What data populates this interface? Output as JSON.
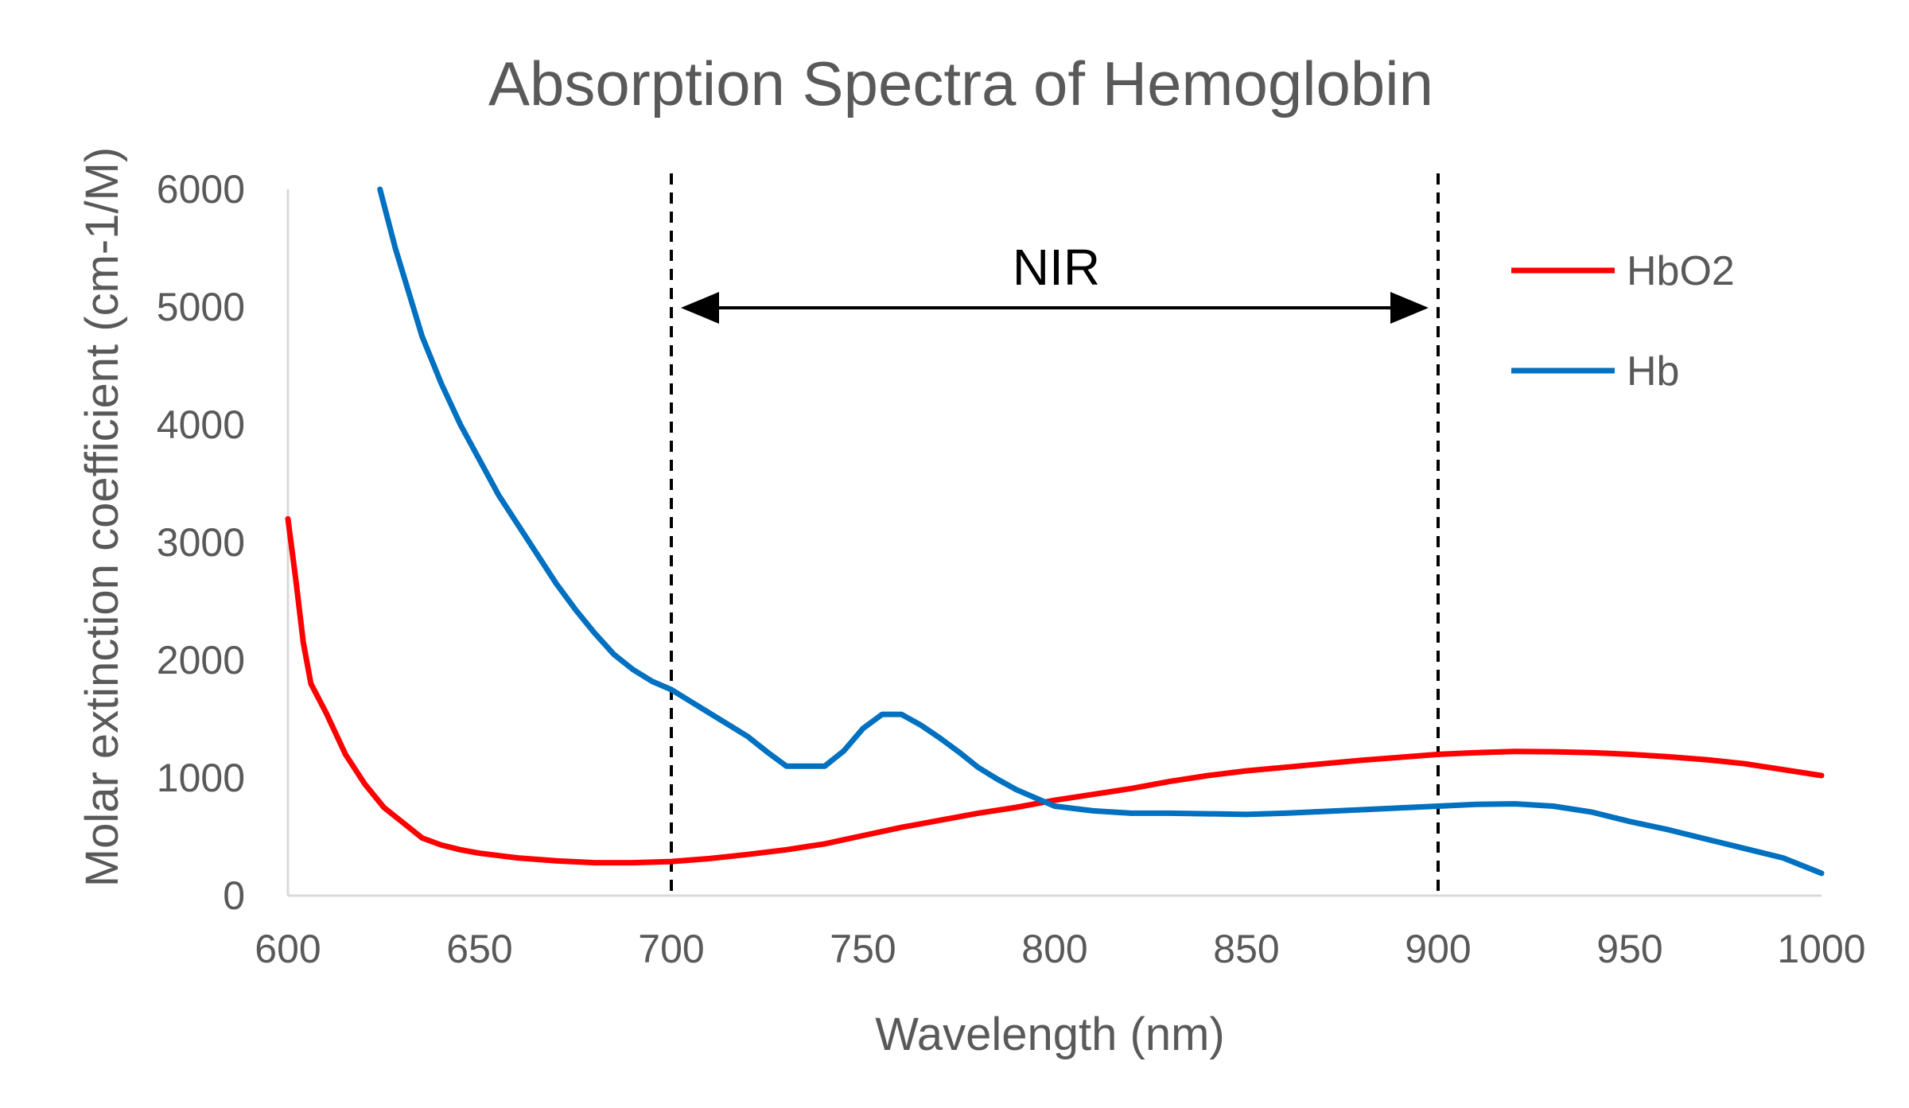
{
  "chart_data": {
    "type": "line",
    "title": "Absorption Spectra of Hemoglobin",
    "xlabel": "Wavelength (nm)",
    "ylabel": "Molar extinction coefficient (cm-1/M)",
    "xlim": [
      600,
      1000
    ],
    "ylim": [
      0,
      6000
    ],
    "xticks": [
      "600",
      "650",
      "700",
      "750",
      "800",
      "850",
      "900",
      "950",
      "1000"
    ],
    "yticks": [
      "0",
      "1000",
      "2000",
      "3000",
      "4000",
      "5000",
      "6000"
    ],
    "grid": false,
    "legend_position": "right",
    "series": [
      {
        "name": "HbO2",
        "color": "#ff0000",
        "points": [
          [
            600,
            3200
          ],
          [
            602,
            2700
          ],
          [
            604,
            2150
          ],
          [
            606,
            1800
          ],
          [
            610,
            1550
          ],
          [
            615,
            1200
          ],
          [
            620,
            950
          ],
          [
            625,
            750
          ],
          [
            630,
            620
          ],
          [
            635,
            490
          ],
          [
            640,
            430
          ],
          [
            645,
            390
          ],
          [
            650,
            360
          ],
          [
            660,
            320
          ],
          [
            670,
            295
          ],
          [
            680,
            280
          ],
          [
            690,
            280
          ],
          [
            700,
            290
          ],
          [
            710,
            315
          ],
          [
            720,
            350
          ],
          [
            730,
            390
          ],
          [
            740,
            440
          ],
          [
            750,
            510
          ],
          [
            760,
            580
          ],
          [
            770,
            640
          ],
          [
            780,
            700
          ],
          [
            790,
            750
          ],
          [
            800,
            810
          ],
          [
            810,
            860
          ],
          [
            820,
            910
          ],
          [
            830,
            970
          ],
          [
            840,
            1020
          ],
          [
            850,
            1060
          ],
          [
            860,
            1090
          ],
          [
            870,
            1120
          ],
          [
            880,
            1150
          ],
          [
            890,
            1175
          ],
          [
            900,
            1200
          ],
          [
            910,
            1215
          ],
          [
            920,
            1225
          ],
          [
            930,
            1222
          ],
          [
            940,
            1215
          ],
          [
            950,
            1200
          ],
          [
            960,
            1180
          ],
          [
            970,
            1155
          ],
          [
            980,
            1120
          ],
          [
            990,
            1070
          ],
          [
            1000,
            1020
          ]
        ]
      },
      {
        "name": "Hb",
        "color": "#0070c0",
        "points": [
          [
            624,
            6000
          ],
          [
            628,
            5500
          ],
          [
            635,
            4750
          ],
          [
            640,
            4350
          ],
          [
            645,
            4000
          ],
          [
            650,
            3700
          ],
          [
            655,
            3400
          ],
          [
            660,
            3150
          ],
          [
            665,
            2900
          ],
          [
            670,
            2650
          ],
          [
            675,
            2430
          ],
          [
            680,
            2230
          ],
          [
            685,
            2050
          ],
          [
            690,
            1920
          ],
          [
            695,
            1820
          ],
          [
            700,
            1750
          ],
          [
            705,
            1650
          ],
          [
            710,
            1550
          ],
          [
            715,
            1450
          ],
          [
            720,
            1350
          ],
          [
            725,
            1220
          ],
          [
            730,
            1100
          ],
          [
            735,
            1100
          ],
          [
            740,
            1100
          ],
          [
            745,
            1230
          ],
          [
            750,
            1420
          ],
          [
            755,
            1540
          ],
          [
            760,
            1540
          ],
          [
            765,
            1450
          ],
          [
            770,
            1340
          ],
          [
            775,
            1220
          ],
          [
            780,
            1090
          ],
          [
            785,
            990
          ],
          [
            790,
            900
          ],
          [
            795,
            830
          ],
          [
            800,
            760
          ],
          [
            810,
            720
          ],
          [
            820,
            700
          ],
          [
            830,
            700
          ],
          [
            840,
            695
          ],
          [
            850,
            690
          ],
          [
            860,
            700
          ],
          [
            870,
            715
          ],
          [
            880,
            730
          ],
          [
            890,
            745
          ],
          [
            900,
            760
          ],
          [
            910,
            775
          ],
          [
            920,
            780
          ],
          [
            930,
            760
          ],
          [
            940,
            710
          ],
          [
            950,
            630
          ],
          [
            960,
            560
          ],
          [
            970,
            480
          ],
          [
            980,
            400
          ],
          [
            990,
            320
          ],
          [
            1000,
            190
          ]
        ]
      }
    ],
    "annotations": {
      "nir_label": "NIR",
      "region_start": 700,
      "region_end": 900,
      "arrow_y": 5000
    }
  }
}
